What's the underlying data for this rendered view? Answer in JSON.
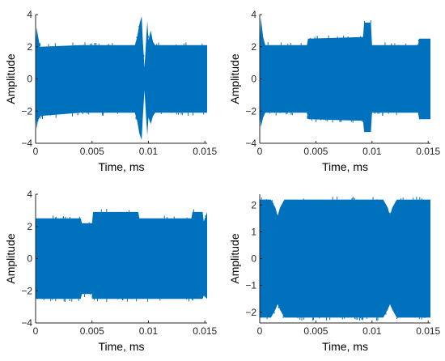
{
  "colors": {
    "signal": "#0072BD",
    "axis": "#262626"
  },
  "chart_data": [
    {
      "type": "area",
      "description_free": true,
      "xlabel": "Time, ms",
      "ylabel": "Amplitude",
      "xlim": [
        0,
        0.0152
      ],
      "ylim": [
        -4,
        4
      ],
      "xticks": [
        0,
        0.005,
        0.01,
        0.015
      ],
      "xticklabels": [
        "0",
        "0.005",
        "0.01",
        "0.015"
      ],
      "yticks": [
        -4,
        -2,
        0,
        2,
        4
      ],
      "yticklabels": [
        "−4",
        "−2",
        "0",
        "2",
        "4"
      ],
      "grid": false,
      "envelope_x": [
        0,
        0.0001,
        0.0002,
        0.0004,
        0.004,
        0.0088,
        0.009,
        0.0092,
        0.0094,
        0.0095,
        0.00965,
        0.0098,
        0.0099,
        0.01,
        0.0102,
        0.0104,
        0.0106,
        0.0152
      ],
      "envelope_upper": [
        2.1,
        3.2,
        2.7,
        2.0,
        2.1,
        2.1,
        2.6,
        3.4,
        3.9,
        2.4,
        0.7,
        2.5,
        3.6,
        2.4,
        3.0,
        2.3,
        2.1,
        2.1
      ],
      "envelope_lower": [
        -2.1,
        -3.1,
        -2.6,
        -2.3,
        -2.1,
        -2.1,
        -2.6,
        -3.4,
        -3.8,
        -2.4,
        -0.7,
        -2.5,
        -3.5,
        -2.4,
        -2.8,
        -2.3,
        -2.1,
        -2.1
      ]
    },
    {
      "type": "area",
      "xlabel": "Time, ms",
      "ylabel": "Amplitude",
      "xlim": [
        0,
        0.0152
      ],
      "ylim": [
        -4,
        4
      ],
      "xticks": [
        0,
        0.005,
        0.01,
        0.015
      ],
      "xticklabels": [
        "0",
        "0.005",
        "0.01",
        "0.015"
      ],
      "yticks": [
        -4,
        -2,
        0,
        2,
        4
      ],
      "yticklabels": [
        "−4",
        "−2",
        "0",
        "2",
        "4"
      ],
      "grid": false,
      "envelope_x": [
        0,
        0.0001,
        0.0003,
        0.0005,
        0.0042,
        0.0043,
        0.0092,
        0.0093,
        0.0099,
        0.01,
        0.0141,
        0.0142,
        0.0152
      ],
      "envelope_upper": [
        2.1,
        3.8,
        2.6,
        2.1,
        2.1,
        2.5,
        2.6,
        3.5,
        3.5,
        2.1,
        2.1,
        2.5,
        2.5
      ],
      "envelope_lower": [
        -2.1,
        -3.0,
        -2.4,
        -2.1,
        -2.1,
        -2.5,
        -2.6,
        -3.3,
        -3.3,
        -2.1,
        -2.1,
        -2.5,
        -2.5
      ]
    },
    {
      "type": "area",
      "xlabel": "Time, ms",
      "ylabel": "Amplitude",
      "xlim": [
        0,
        0.0152
      ],
      "ylim": [
        -4,
        4
      ],
      "xticks": [
        0,
        0.005,
        0.01,
        0.015
      ],
      "xticklabels": [
        "0",
        "0.005",
        "0.01",
        "0.015"
      ],
      "yticks": [
        -4,
        -2,
        0,
        2,
        4
      ],
      "yticklabels": [
        "−4",
        "−2",
        "0",
        "2",
        "4"
      ],
      "grid": false,
      "envelope_x": [
        0,
        0.004,
        0.0041,
        0.005,
        0.0051,
        0.0091,
        0.0092,
        0.0138,
        0.0139,
        0.0148,
        0.0149,
        0.0152
      ],
      "envelope_upper": [
        2.5,
        2.5,
        2.2,
        2.2,
        2.9,
        2.9,
        2.5,
        2.5,
        2.9,
        2.9,
        2.3,
        2.9
      ],
      "envelope_lower": [
        -2.5,
        -2.5,
        -2.2,
        -2.2,
        -2.5,
        -2.5,
        -2.5,
        -2.5,
        -2.5,
        -2.5,
        -2.3,
        -2.5
      ]
    },
    {
      "type": "area",
      "xlabel": "Time, ms",
      "ylabel": "Amplitude",
      "xlim": [
        0,
        0.0152
      ],
      "ylim": [
        -2.4,
        2.4
      ],
      "xticks": [
        0,
        0.005,
        0.01,
        0.015
      ],
      "xticklabels": [
        "0",
        "0.005",
        "0.01",
        "0.015"
      ],
      "yticks": [
        -2,
        -1,
        0,
        1,
        2
      ],
      "yticklabels": [
        "−2",
        "−1",
        "0",
        "1",
        "2"
      ],
      "grid": false,
      "envelope_x": [
        0,
        0.001,
        0.0014,
        0.0016,
        0.0018,
        0.0022,
        0.011,
        0.0114,
        0.0116,
        0.0118,
        0.0122,
        0.0152
      ],
      "envelope_upper": [
        2.2,
        2.2,
        1.9,
        1.6,
        1.9,
        2.2,
        2.2,
        1.9,
        1.6,
        1.9,
        2.2,
        2.2
      ],
      "envelope_lower": [
        -2.2,
        -2.2,
        -1.9,
        -1.7,
        -1.9,
        -2.2,
        -2.2,
        -1.9,
        -1.7,
        -1.9,
        -2.2,
        -2.2
      ]
    }
  ]
}
